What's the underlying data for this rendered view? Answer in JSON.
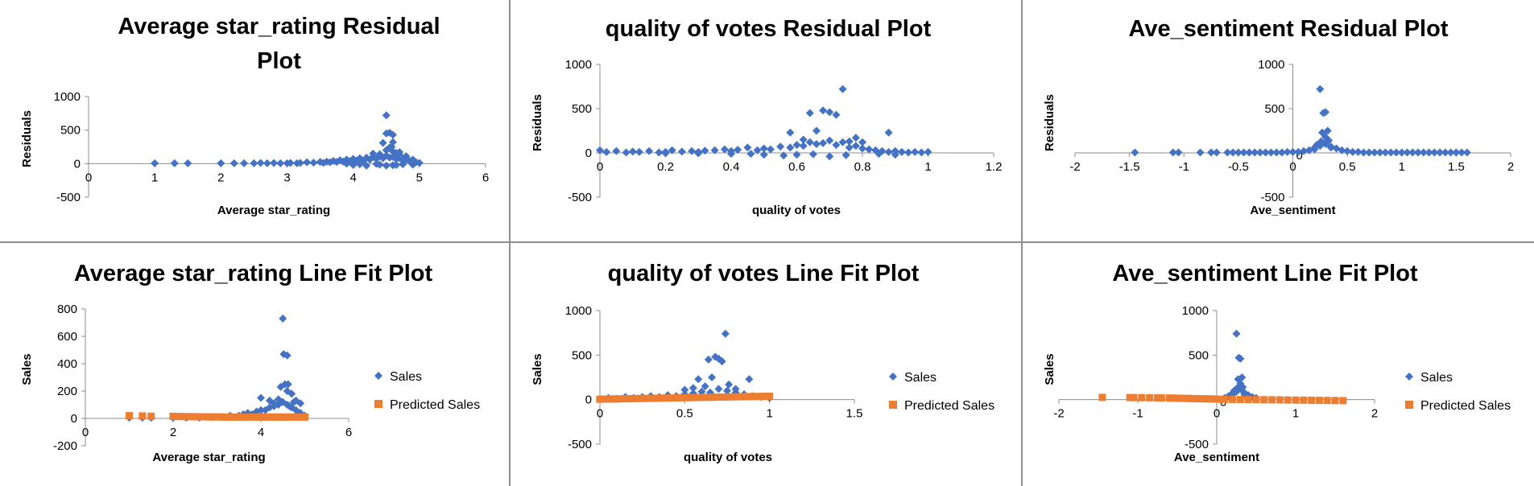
{
  "colors": {
    "sales": "#4472C4",
    "predicted": "#ED7D31",
    "axis": "#8c8c8c",
    "divider": "#8f8f8f"
  },
  "legend": {
    "sales": "Sales",
    "predicted": "Predicted Sales"
  },
  "chart_data": [
    {
      "type": "scatter",
      "title_lines": [
        "Average star_rating  Residual",
        "Plot"
      ],
      "xlabel": "Average star_rating",
      "ylabel": "Residuals",
      "xlim": [
        0,
        6
      ],
      "xticks": [
        0,
        1,
        2,
        3,
        4,
        5,
        6
      ],
      "xtick_labels": [
        "0",
        "1",
        "2",
        "3",
        "4",
        "5",
        "6"
      ],
      "ylim": [
        -500,
        1000
      ],
      "yticks": [
        -500,
        0,
        500,
        1000
      ],
      "ytick_labels": [
        "-500",
        "0",
        "500",
        "1000"
      ],
      "legend": false,
      "series": [
        {
          "key": "sales",
          "marker": "diamond",
          "x": [
            1,
            1.3,
            1.5,
            2,
            2.2,
            2.35,
            2.5,
            2.6,
            2.7,
            2.8,
            2.9,
            3.0,
            3.05,
            3.15,
            3.2,
            3.3,
            3.4,
            3.5,
            3.55,
            3.6,
            3.65,
            3.7,
            3.75,
            3.8,
            3.85,
            3.9,
            3.95,
            4.0,
            4.05,
            4.1,
            4.15,
            4.2,
            4.25,
            4.3,
            4.35,
            4.4,
            4.45,
            4.5,
            4.55,
            4.6,
            4.65,
            4.7,
            4.75,
            4.8,
            4.85,
            4.9,
            4.95,
            5.0,
            4.3,
            4.5,
            4.5,
            4.6,
            4.55,
            4.55,
            4.45,
            4.6,
            4.65,
            4.7,
            4.8,
            4.9,
            4.0,
            4.1,
            4.2,
            3.9,
            4.4,
            4.6,
            4.75,
            4.35,
            4.65,
            4.9,
            4.5,
            4.58,
            4.5,
            4.6,
            4.4,
            4.7
          ],
          "y": [
            5,
            5,
            5,
            5,
            5,
            5,
            5,
            10,
            5,
            10,
            5,
            5,
            10,
            5,
            10,
            20,
            15,
            25,
            10,
            30,
            20,
            40,
            25,
            50,
            30,
            60,
            35,
            70,
            45,
            80,
            40,
            90,
            60,
            100,
            70,
            110,
            80,
            120,
            90,
            100,
            70,
            80,
            50,
            60,
            40,
            30,
            20,
            10,
            150,
            200,
            450,
            430,
            460,
            240,
            310,
            320,
            160,
            170,
            110,
            60,
            -20,
            -10,
            -30,
            0,
            -15,
            -25,
            -10,
            -5,
            -20,
            -15,
            -30,
            250,
            720,
            180,
            140,
            130
          ]
        }
      ]
    },
    {
      "type": "scatter",
      "title_lines": [
        "quality of votes  Residual Plot"
      ],
      "xlabel": "quality of votes",
      "ylabel": "Residuals",
      "xlim": [
        0,
        1.2
      ],
      "xticks": [
        0,
        0.2,
        0.4,
        0.6,
        0.8,
        1,
        1.2
      ],
      "xtick_labels": [
        "0",
        "0.2",
        "0.4",
        "0.6",
        "0.8",
        "1",
        "1.2"
      ],
      "ylim": [
        -500,
        1000
      ],
      "yticks": [
        -500,
        0,
        500,
        1000
      ],
      "ytick_labels": [
        "-500",
        "0",
        "500",
        "1000"
      ],
      "legend": false,
      "series": [
        {
          "key": "sales",
          "marker": "diamond",
          "x": [
            0,
            0.02,
            0.05,
            0.08,
            0.1,
            0.12,
            0.15,
            0.18,
            0.2,
            0.22,
            0.25,
            0.28,
            0.3,
            0.32,
            0.35,
            0.38,
            0.4,
            0.42,
            0.45,
            0.48,
            0.5,
            0.52,
            0.55,
            0.58,
            0.6,
            0.62,
            0.64,
            0.66,
            0.68,
            0.7,
            0.72,
            0.74,
            0.76,
            0.78,
            0.8,
            0.82,
            0.84,
            0.86,
            0.88,
            0.9,
            0.92,
            0.94,
            0.96,
            0.98,
            1.0,
            0.58,
            0.64,
            0.68,
            0.7,
            0.72,
            0.74,
            0.62,
            0.66,
            0.76,
            0.78,
            0.8,
            0.88,
            0.5,
            0.46,
            0.56,
            0.7,
            0.6,
            0.65,
            0.75,
            0.85,
            0.9,
            0.3,
            0.4,
            0.2
          ],
          "y": [
            30,
            10,
            20,
            5,
            15,
            10,
            20,
            5,
            10,
            30,
            15,
            20,
            10,
            25,
            30,
            40,
            20,
            35,
            60,
            30,
            50,
            40,
            70,
            60,
            90,
            80,
            120,
            100,
            110,
            140,
            90,
            120,
            60,
            80,
            50,
            40,
            30,
            20,
            10,
            20,
            10,
            5,
            10,
            5,
            10,
            230,
            450,
            480,
            460,
            430,
            720,
            150,
            250,
            130,
            170,
            120,
            230,
            -20,
            -10,
            -30,
            -40,
            -20,
            -15,
            -25,
            -10,
            -20,
            -5,
            -10,
            -5
          ]
        }
      ]
    },
    {
      "type": "scatter",
      "title_lines": [
        "Ave_sentiment    Residual Plot"
      ],
      "xlabel": "Ave_sentiment",
      "ylabel": "Residuals",
      "xlim": [
        -2,
        2
      ],
      "xticks": [
        -2,
        -1.5,
        -1,
        -0.5,
        0,
        0.5,
        1,
        1.5,
        2
      ],
      "xtick_labels": [
        "-2",
        "-1.5",
        "-1",
        "-0.5",
        "0",
        "0.5",
        "1",
        "1.5",
        "2"
      ],
      "ylim": [
        -500,
        1000
      ],
      "yticks": [
        -500,
        0,
        500,
        1000
      ],
      "ytick_labels": [
        "-500",
        "0",
        "500",
        "1000"
      ],
      "ytick_inside_zero": true,
      "legend": false,
      "series": [
        {
          "key": "sales",
          "marker": "diamond",
          "x": [
            -1.45,
            -1.1,
            -1.05,
            -0.85,
            -0.75,
            -0.7,
            -0.6,
            -0.55,
            -0.5,
            -0.45,
            -0.4,
            -0.35,
            -0.3,
            -0.25,
            -0.2,
            -0.15,
            -0.1,
            -0.05,
            0,
            0.05,
            0.1,
            0.15,
            0.2,
            0.25,
            0.3,
            0.35,
            0.4,
            0.45,
            0.5,
            0.55,
            0.6,
            0.65,
            0.7,
            0.75,
            0.8,
            0.85,
            0.9,
            0.95,
            1.0,
            1.05,
            1.1,
            1.15,
            1.2,
            1.25,
            1.3,
            1.35,
            1.4,
            1.45,
            1.5,
            1.55,
            1.6,
            0.25,
            0.28,
            0.3,
            0.32,
            0.27,
            0.3,
            0.33,
            0.26,
            0.3,
            0.22,
            0.35,
            0.2
          ],
          "y": [
            5,
            5,
            5,
            5,
            5,
            5,
            5,
            5,
            5,
            5,
            5,
            5,
            5,
            5,
            5,
            5,
            5,
            10,
            10,
            10,
            20,
            30,
            60,
            80,
            100,
            70,
            50,
            30,
            20,
            10,
            10,
            5,
            5,
            5,
            5,
            5,
            5,
            5,
            5,
            5,
            5,
            5,
            5,
            5,
            5,
            5,
            5,
            5,
            5,
            5,
            5,
            720,
            450,
            460,
            250,
            230,
            180,
            140,
            130,
            120,
            90,
            60,
            40
          ]
        }
      ]
    },
    {
      "type": "scatter",
      "title_lines": [
        "Average star_rating Line Fit  Plot"
      ],
      "xlabel": "Average star_rating",
      "ylabel": "Sales",
      "xlim": [
        0,
        6
      ],
      "xticks": [
        0,
        2,
        4,
        6
      ],
      "xtick_labels": [
        "0",
        "2",
        "4",
        "6"
      ],
      "ylim": [
        -200,
        800
      ],
      "yticks": [
        -200,
        0,
        200,
        400,
        600,
        800
      ],
      "ytick_labels": [
        "-200",
        "0",
        "200",
        "400",
        "600",
        "800"
      ],
      "legend": true,
      "series": [
        {
          "key": "sales",
          "marker": "diamond",
          "x": [
            1,
            1.3,
            1.5,
            2,
            2.3,
            2.6,
            2.9,
            3.1,
            3.3,
            3.5,
            3.6,
            3.7,
            3.8,
            3.9,
            4.0,
            4.1,
            4.2,
            4.3,
            4.4,
            4.5,
            4.6,
            4.7,
            4.8,
            4.9,
            5.0,
            4.5,
            4.52,
            4.6,
            4.55,
            4.45,
            4.62,
            4.7,
            4.8,
            4.9,
            4.4,
            4.3,
            4.6,
            4.65,
            4.75,
            4.0,
            4.2
          ],
          "y": [
            5,
            5,
            5,
            5,
            5,
            5,
            10,
            10,
            20,
            20,
            30,
            40,
            30,
            50,
            60,
            60,
            80,
            90,
            100,
            120,
            100,
            80,
            60,
            40,
            20,
            730,
            470,
            460,
            250,
            230,
            250,
            180,
            130,
            110,
            140,
            110,
            200,
            90,
            120,
            150,
            130
          ]
        },
        {
          "key": "predicted",
          "marker": "square",
          "x": [
            1,
            1.3,
            1.5,
            2,
            2.1,
            2.2,
            2.3,
            2.4,
            2.5,
            2.6,
            2.7,
            2.8,
            2.9,
            3.0,
            3.1,
            3.2,
            3.3,
            3.4,
            3.5,
            3.6,
            3.7,
            3.8,
            3.9,
            4.0,
            4.1,
            4.2,
            4.3,
            4.4,
            4.5,
            4.6,
            4.7,
            4.8,
            4.9,
            5.0
          ],
          "y": [
            20,
            18,
            16,
            15,
            14,
            14,
            13,
            13,
            12,
            12,
            12,
            11,
            11,
            11,
            10,
            10,
            10,
            10,
            10,
            10,
            10,
            10,
            10,
            10,
            10,
            10,
            10,
            10,
            10,
            10,
            10,
            10,
            10,
            10
          ]
        }
      ]
    },
    {
      "type": "scatter",
      "title_lines": [
        "quality of votes Line Fit  Plot"
      ],
      "xlabel": "quality of votes",
      "ylabel": "Sales",
      "xlim": [
        0,
        1.5
      ],
      "xticks": [
        0,
        0.5,
        1,
        1.5
      ],
      "xtick_labels": [
        "0",
        "0.5",
        "1",
        "1.5"
      ],
      "ylim": [
        -500,
        1000
      ],
      "yticks": [
        -500,
        0,
        500,
        1000
      ],
      "ytick_labels": [
        "-500",
        "0",
        "500",
        "1000"
      ],
      "legend": true,
      "series": [
        {
          "key": "sales",
          "marker": "diamond",
          "x": [
            0.05,
            0.1,
            0.15,
            0.2,
            0.25,
            0.3,
            0.35,
            0.4,
            0.45,
            0.5,
            0.55,
            0.6,
            0.65,
            0.7,
            0.75,
            0.8,
            0.85,
            0.9,
            0.95,
            1.0,
            0.58,
            0.64,
            0.68,
            0.7,
            0.72,
            0.74,
            0.62,
            0.66,
            0.76,
            0.8,
            0.88,
            0.5,
            0.55
          ],
          "y": [
            20,
            10,
            30,
            20,
            30,
            40,
            30,
            50,
            40,
            60,
            70,
            90,
            80,
            120,
            100,
            80,
            60,
            40,
            30,
            20,
            230,
            450,
            480,
            460,
            430,
            740,
            150,
            250,
            170,
            120,
            230,
            110,
            130
          ]
        },
        {
          "key": "predicted",
          "marker": "square",
          "x": [
            0,
            0.03,
            0.06,
            0.09,
            0.12,
            0.15,
            0.18,
            0.21,
            0.24,
            0.27,
            0.3,
            0.33,
            0.36,
            0.39,
            0.42,
            0.45,
            0.48,
            0.51,
            0.54,
            0.57,
            0.6,
            0.63,
            0.66,
            0.69,
            0.72,
            0.75,
            0.78,
            0.81,
            0.84,
            0.87,
            0.9,
            0.93,
            0.96,
            1.0
          ],
          "y": [
            5,
            6,
            7,
            8,
            9,
            10,
            11,
            12,
            13,
            14,
            15,
            16,
            17,
            18,
            19,
            20,
            21,
            22,
            23,
            24,
            25,
            26,
            27,
            28,
            29,
            30,
            31,
            32,
            33,
            34,
            35,
            36,
            37,
            38
          ]
        }
      ]
    },
    {
      "type": "scatter",
      "title_lines": [
        "Ave_sentiment  Line Fit  Plot"
      ],
      "xlabel": "Ave_sentiment",
      "ylabel": "Sales",
      "xlim": [
        -2,
        2
      ],
      "xticks": [
        -2,
        -1,
        0,
        1,
        2
      ],
      "xtick_labels": [
        "-2",
        "-1",
        "0",
        "1",
        "2"
      ],
      "ylim": [
        -500,
        1000
      ],
      "yticks": [
        -500,
        0,
        500,
        1000
      ],
      "ytick_labels": [
        "-500",
        "0",
        "500",
        "1000"
      ],
      "ytick_inside_zero": true,
      "legend": true,
      "series": [
        {
          "key": "sales",
          "marker": "diamond",
          "x": [
            0.1,
            0.15,
            0.2,
            0.25,
            0.3,
            0.35,
            0.4,
            0.45,
            0.5,
            0.25,
            0.28,
            0.3,
            0.32,
            0.27,
            0.3,
            0.33,
            0.26,
            0.22,
            0.2,
            0.35
          ],
          "y": [
            20,
            40,
            60,
            90,
            120,
            80,
            50,
            30,
            20,
            740,
            470,
            460,
            250,
            230,
            180,
            140,
            130,
            100,
            70,
            60
          ]
        },
        {
          "key": "predicted",
          "marker": "square",
          "x": [
            -1.45,
            -1.1,
            -1.05,
            -0.95,
            -0.85,
            -0.75,
            -0.7,
            -0.6,
            -0.55,
            -0.5,
            -0.45,
            -0.4,
            -0.35,
            -0.3,
            -0.25,
            -0.2,
            -0.15,
            -0.1,
            -0.05,
            0,
            0.05,
            0.1,
            0.2,
            0.3,
            0.4,
            0.5,
            0.6,
            0.7,
            0.8,
            0.9,
            1.0,
            1.1,
            1.2,
            1.3,
            1.4,
            1.5,
            1.6
          ],
          "y": [
            25,
            24,
            23,
            22,
            21,
            20,
            19,
            18,
            17,
            16,
            15,
            14,
            13,
            12,
            11,
            10,
            9,
            8,
            7,
            6,
            5,
            4,
            3,
            2,
            1,
            0,
            -1,
            -2,
            -3,
            -4,
            -5,
            -6,
            -7,
            -8,
            -9,
            -10,
            -11
          ]
        }
      ]
    }
  ]
}
